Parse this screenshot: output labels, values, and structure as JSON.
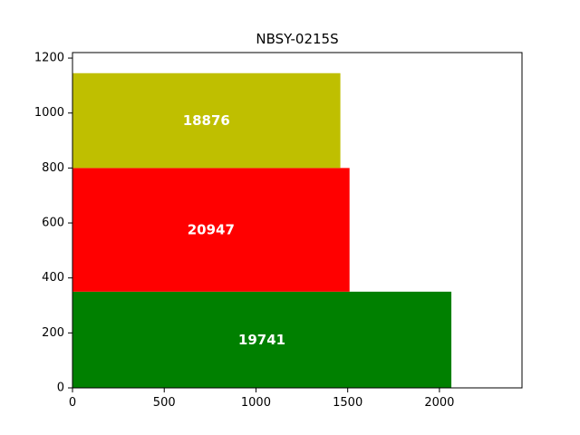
{
  "chart_data": {
    "type": "bar",
    "orientation": "horizontal",
    "stacked_layout": "bars stacked vertically with varying thickness",
    "title": "NBSY-0215S",
    "xlabel": "",
    "ylabel": "",
    "xlim": [
      0,
      2450
    ],
    "ylim": [
      0,
      1220
    ],
    "xticks": [
      0,
      500,
      1000,
      1500,
      2000
    ],
    "yticks": [
      0,
      200,
      400,
      600,
      800,
      1000,
      1200
    ],
    "grid": false,
    "bars": [
      {
        "label": "19741",
        "length": 2065,
        "y_start": 0,
        "y_end": 350,
        "color": "#008000"
      },
      {
        "label": "20947",
        "length": 1510,
        "y_start": 350,
        "y_end": 800,
        "color": "#ff0000"
      },
      {
        "label": "18876",
        "length": 1460,
        "y_start": 800,
        "y_end": 1145,
        "color": "#bfbf00"
      }
    ]
  }
}
